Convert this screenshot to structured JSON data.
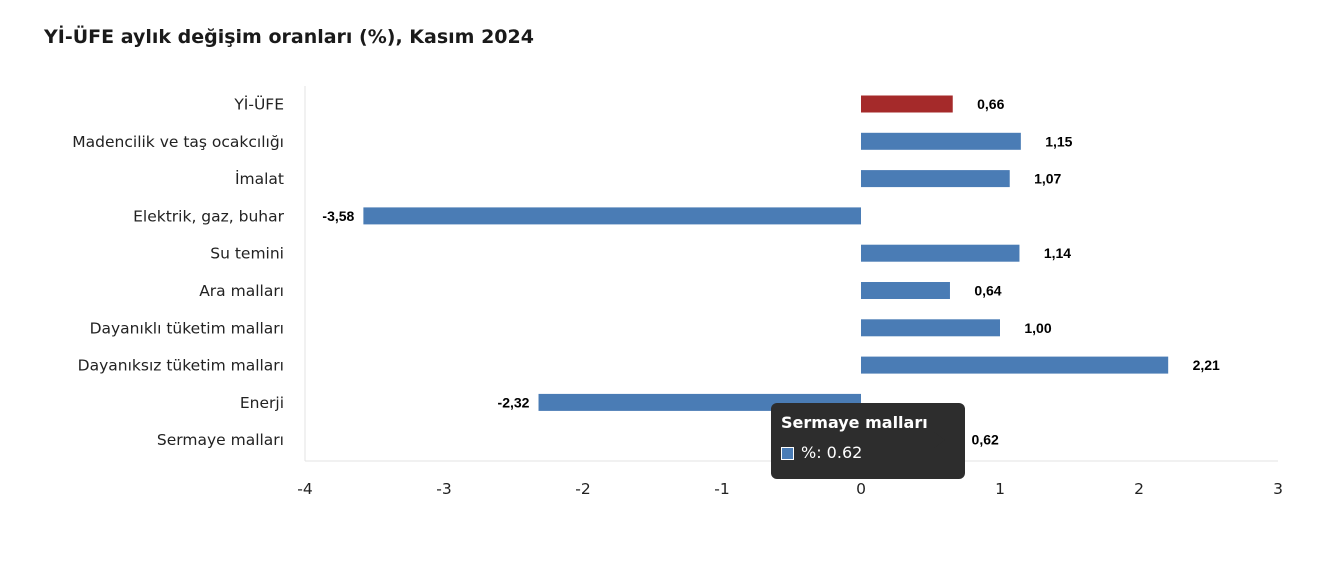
{
  "chart_data": {
    "type": "bar",
    "orientation": "horizontal",
    "title": "Yİ-ÜFE aylık değişim oranları (%), Kasım 2024",
    "categories": [
      "Yİ-ÜFE",
      "Madencilik ve taş ocakcılığı",
      "İmalat",
      "Elektrik, gaz, buhar",
      "Su temini",
      "Ara malları",
      "Dayanıklı tüketim malları",
      "Dayanıksız tüketim malları",
      "Enerji",
      "Sermaye malları"
    ],
    "values": [
      0.66,
      1.15,
      1.07,
      -3.58,
      1.14,
      0.64,
      1.0,
      2.21,
      -2.32,
      0.62
    ],
    "data_labels": [
      "0,66",
      "1,15",
      "1,07",
      "-3,58",
      "1,14",
      "0,64",
      "1,00",
      "2,21",
      "-2,32",
      "0,62"
    ],
    "xlim": [
      -4,
      3
    ],
    "x_ticks": [
      -4,
      -3,
      -2,
      -1,
      0,
      1,
      2,
      3
    ],
    "grid": false,
    "legend": "none",
    "colors": {
      "highlight": "#a52a2a",
      "default": "#4a7cb5"
    },
    "highlight_index": 0
  },
  "tooltip": {
    "title": "Sermaye malları",
    "series_label": "%: 0.62",
    "swatch_color": "#4a7cb5"
  }
}
